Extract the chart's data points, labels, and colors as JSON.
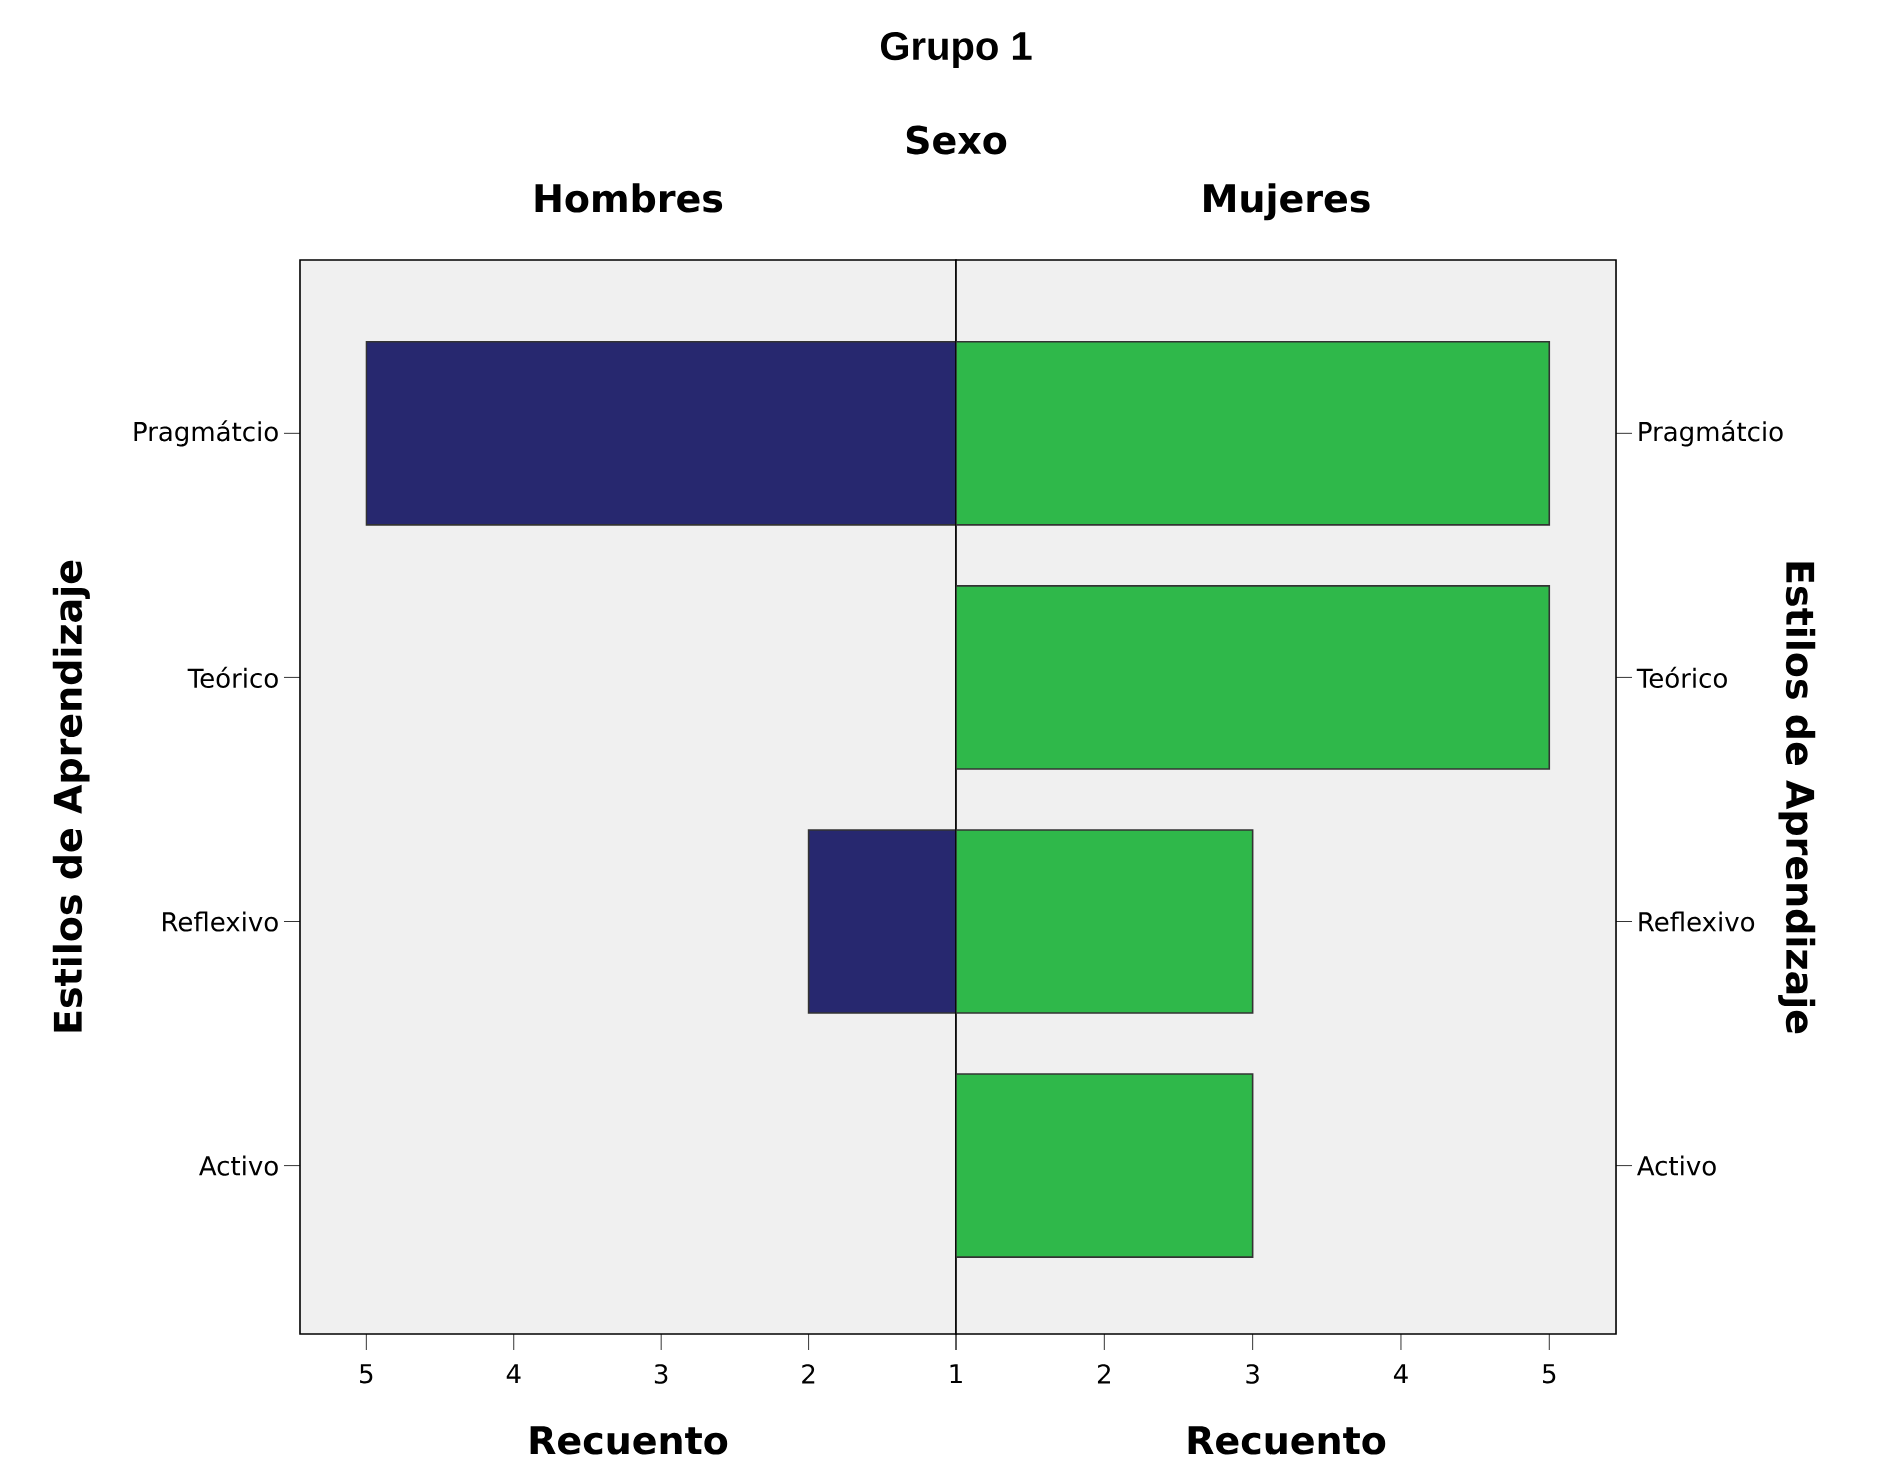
{
  "chart_data": [
    {
      "type": "bar",
      "orientation": "horizontal",
      "title": "Hombres",
      "annotations": [
        "Grupo 1",
        "Sexo"
      ],
      "xlabel": "Recuento",
      "ylabel": "Estilos de Aprendizaje",
      "categories": [
        "Pragmátcio",
        "Teórico",
        "Reflexivo",
        "Activo"
      ],
      "series": [
        {
          "color": "#27286f",
          "values": [
            5,
            null,
            2,
            null
          ]
        }
      ],
      "xlim": [
        5.45,
        1
      ],
      "xticks": [
        5,
        4,
        3,
        2,
        1
      ]
    },
    {
      "type": "bar",
      "orientation": "horizontal",
      "title": "Mujeres",
      "xlabel": "Recuento",
      "ylabel": "Estilos de Aprendizaje",
      "categories": [
        "Pragmátcio",
        "Teórico",
        "Reflexivo",
        "Activo"
      ],
      "series": [
        {
          "color": "#2fb84a",
          "values": [
            5,
            5,
            3,
            3
          ]
        }
      ],
      "xlim": [
        1,
        5.45
      ],
      "xticks": [
        {
          "value": 1,
          "label": null
        },
        2,
        3,
        4,
        5
      ]
    }
  ]
}
